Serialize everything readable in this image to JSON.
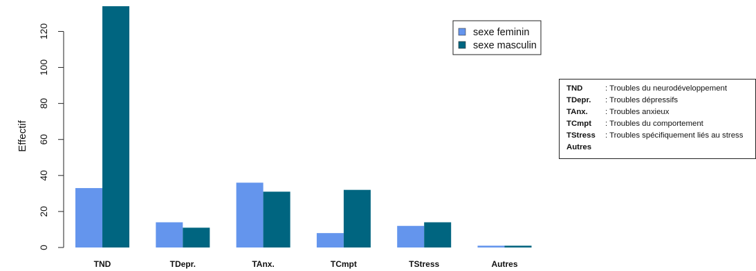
{
  "chart_data": {
    "type": "bar",
    "title": "",
    "xlabel": "",
    "ylabel": "Effectif",
    "ylim": [
      0,
      134
    ],
    "yticks": [
      0,
      20,
      40,
      60,
      80,
      100,
      120
    ],
    "categories": [
      "TND",
      "TDepr.",
      "TAnx.",
      "TCmpt",
      "TStress",
      "Autres"
    ],
    "series": [
      {
        "name": "sexe feminin",
        "color": "#6495ED",
        "values": [
          33,
          14,
          36,
          8,
          12,
          1
        ]
      },
      {
        "name": "sexe masculin",
        "color": "#006580",
        "values": [
          134,
          11,
          31,
          32,
          14,
          1
        ]
      }
    ],
    "grid": false,
    "legend_position": "top-right"
  },
  "abbreviations": [
    {
      "code": "TND",
      "desc": ": Troubles du neurodéveloppement"
    },
    {
      "code": "TDepr.",
      "desc": ": Troubles dépressifs"
    },
    {
      "code": "TAnx.",
      "desc": ": Troubles anxieux"
    },
    {
      "code": "TCmpt",
      "desc": ": Troubles du comportement"
    },
    {
      "code": "TStress",
      "desc": ": Troubles spécifiquement liés au stress"
    },
    {
      "code": "Autres",
      "desc": ""
    }
  ]
}
